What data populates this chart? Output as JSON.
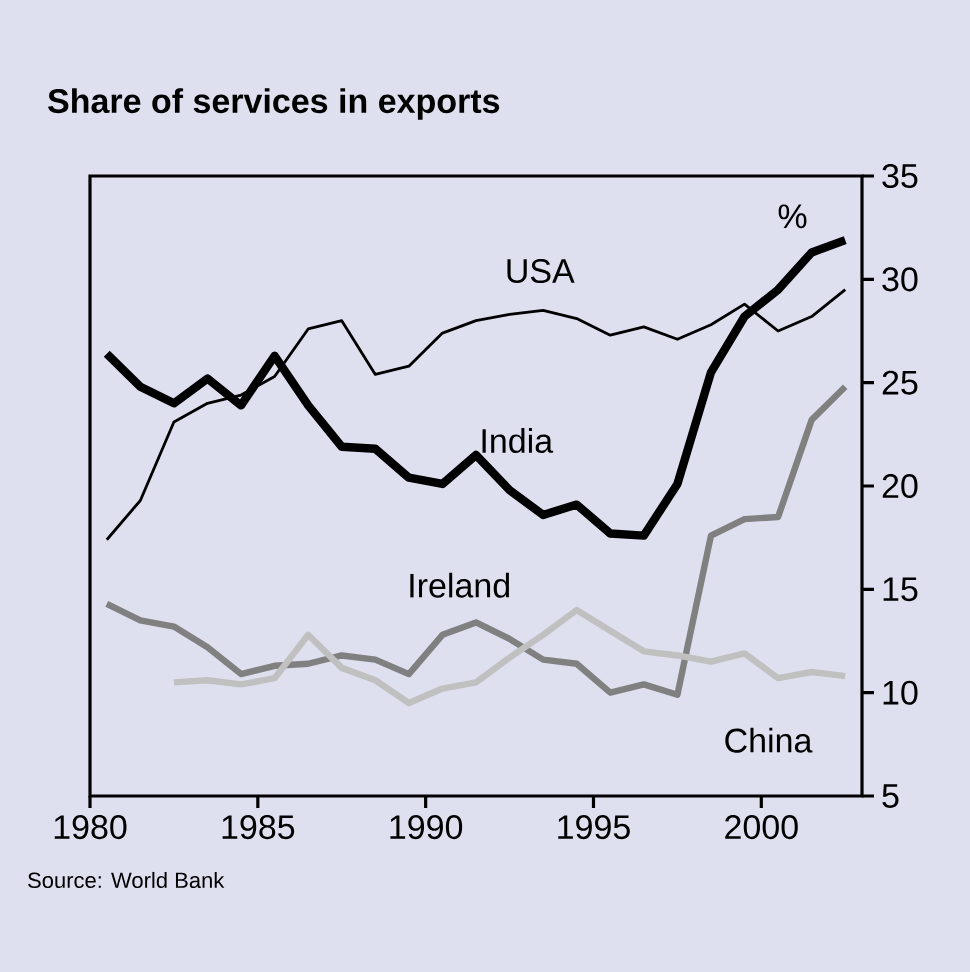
{
  "chart_data": {
    "type": "line",
    "title": "Share of services in exports",
    "ylabel": "%",
    "x": [
      1980.5,
      1981.5,
      1982.5,
      1983.5,
      1984.5,
      1985.5,
      1986.5,
      1987.5,
      1988.5,
      1989.5,
      1990.5,
      1991.5,
      1992.5,
      1993.5,
      1994.5,
      1995.5,
      1996.5,
      1997.5,
      1998.5,
      1999.5,
      2000.5,
      2001.5,
      2002.5
    ],
    "series": [
      {
        "name": "USA",
        "color": "#000000",
        "values": [
          17.4,
          19.3,
          23.1,
          24.0,
          24.4,
          25.3,
          27.6,
          28.0,
          25.4,
          25.8,
          27.4,
          28.0,
          28.3,
          28.5,
          28.1,
          27.3,
          27.7,
          27.1,
          27.8,
          28.8,
          27.5,
          28.2,
          29.5
        ]
      },
      {
        "name": "India",
        "color": "#000000",
        "values": [
          26.4,
          24.8,
          24.0,
          25.2,
          23.9,
          26.3,
          23.9,
          21.9,
          21.8,
          20.4,
          20.1,
          21.5,
          19.8,
          18.6,
          19.1,
          17.7,
          17.6,
          20.1,
          25.5,
          28.2,
          29.5,
          31.3,
          31.9
        ]
      },
      {
        "name": "Ireland",
        "color": "#808080",
        "values": [
          14.3,
          13.5,
          13.2,
          12.2,
          10.9,
          11.3,
          11.4,
          11.8,
          11.6,
          10.9,
          12.8,
          13.4,
          12.6,
          11.6,
          11.4,
          10.0,
          10.4,
          9.9,
          17.6,
          18.4,
          18.5,
          23.2,
          24.8
        ]
      },
      {
        "name": "China",
        "color": "#c0c0c0",
        "values": [
          null,
          null,
          10.5,
          10.6,
          10.4,
          10.7,
          12.8,
          11.2,
          10.6,
          9.5,
          10.2,
          10.5,
          11.7,
          12.8,
          14.0,
          13.0,
          12.0,
          11.8,
          11.5,
          11.9,
          10.7,
          11.0,
          10.8
        ]
      }
    ],
    "xlim": [
      1980,
      2003
    ],
    "ylim": [
      5,
      35
    ],
    "xticks": [
      1980,
      1985,
      1990,
      1995,
      2000
    ],
    "yticks": [
      5,
      10,
      15,
      20,
      25,
      30,
      35
    ],
    "annotations": [
      "Source: World Bank"
    ]
  }
}
